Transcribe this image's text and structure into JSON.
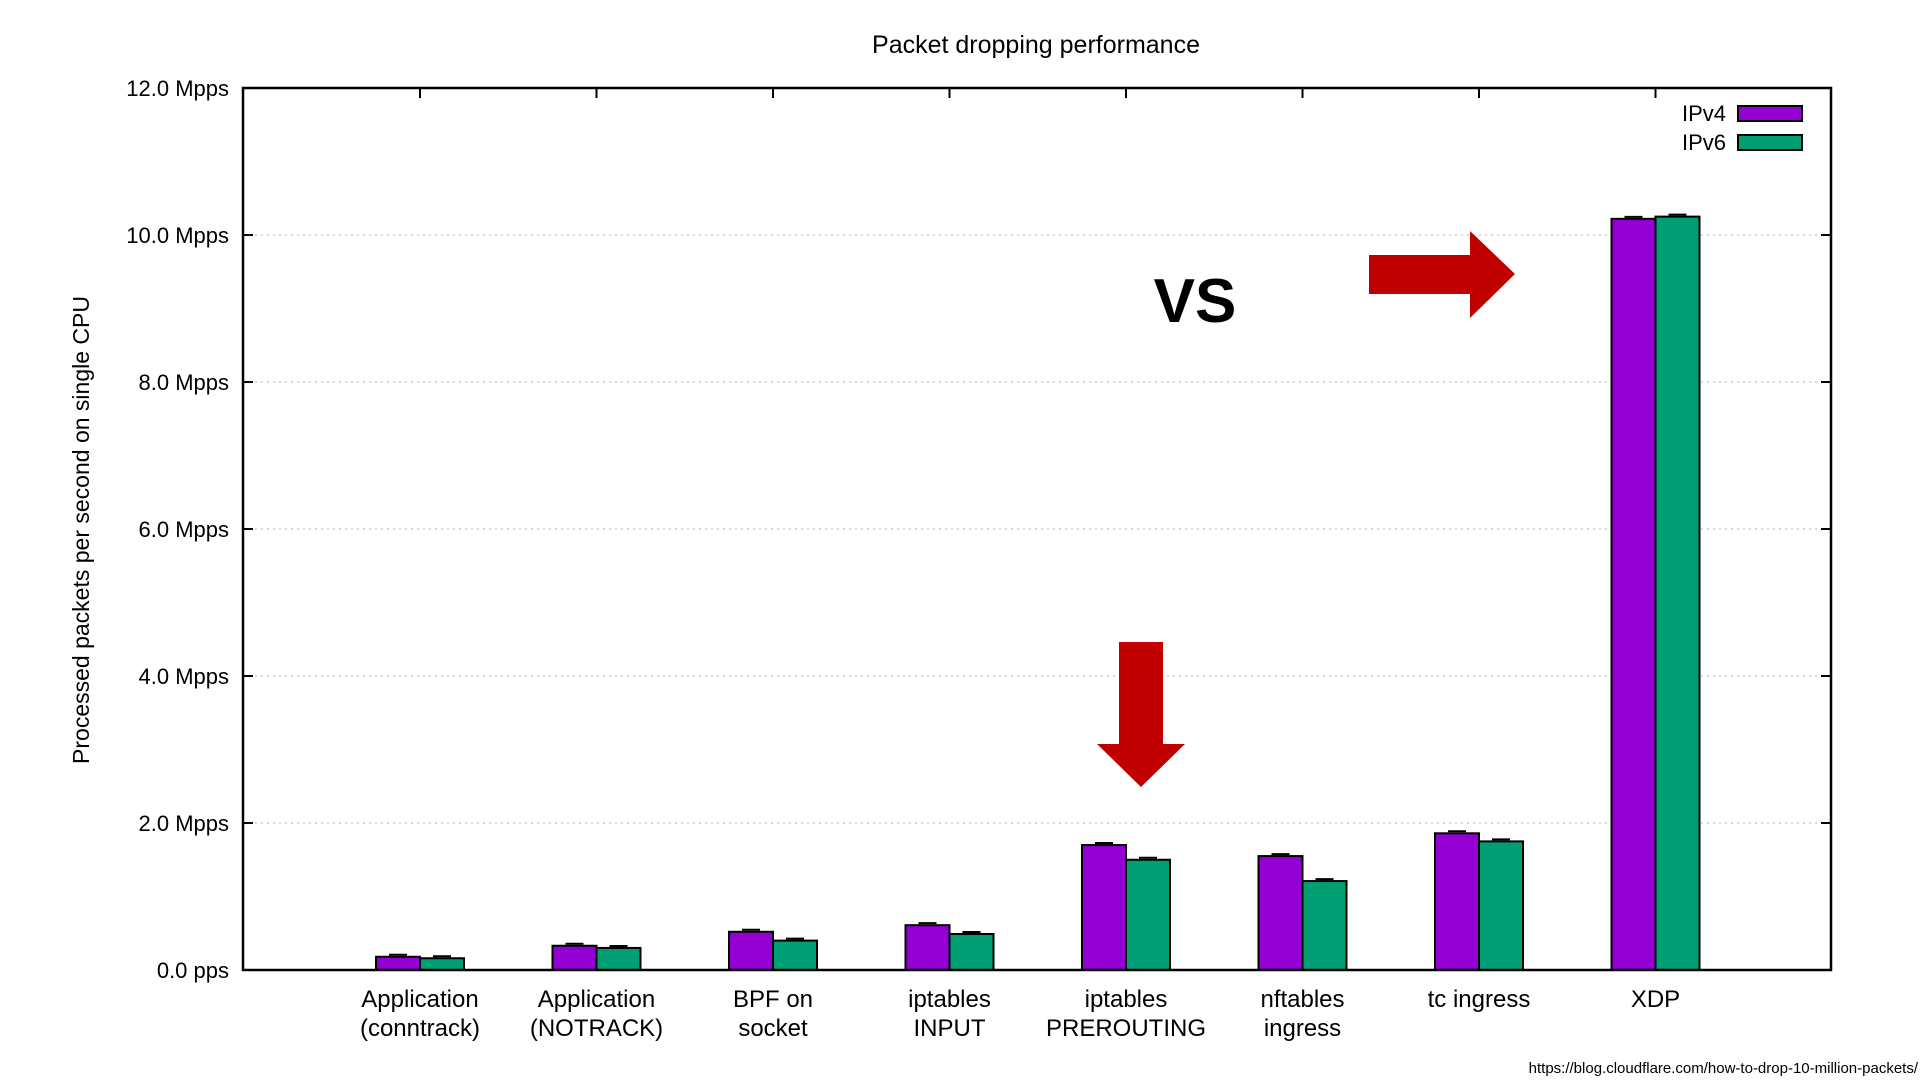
{
  "chart_data": {
    "type": "bar",
    "title": "Packet dropping performance",
    "xlabel": "",
    "ylabel": "Processed packets per second on single CPU",
    "ylim": [
      0,
      12
    ],
    "yticks": [
      0,
      2,
      4,
      6,
      8,
      10,
      12
    ],
    "ytick_labels": [
      "0.0  pps",
      "2.0 Mpps",
      "4.0 Mpps",
      "6.0 Mpps",
      "8.0 Mpps",
      "10.0 Mpps",
      "12.0 Mpps"
    ],
    "grid": true,
    "legend_position": "top-right",
    "categories": [
      [
        "Application",
        "(conntrack)"
      ],
      [
        "Application",
        "(NOTRACK)"
      ],
      [
        "BPF on",
        "socket"
      ],
      [
        "iptables",
        "INPUT"
      ],
      [
        "iptables",
        "PREROUTING"
      ],
      [
        "nftables",
        "ingress"
      ],
      [
        "tc ingress"
      ],
      [
        "XDP"
      ]
    ],
    "series": [
      {
        "name": "IPv4",
        "color": "#9400d3",
        "values": [
          0.18,
          0.33,
          0.52,
          0.61,
          1.7,
          1.55,
          1.86,
          10.22
        ]
      },
      {
        "name": "IPv6",
        "color": "#009e73",
        "values": [
          0.16,
          0.3,
          0.4,
          0.49,
          1.5,
          1.21,
          1.75,
          10.25
        ]
      }
    ],
    "annotations": {
      "vs_text": "VS",
      "source": "https://blog.cloudflare.com/how-to-drop-10-million-packets/",
      "arrow_color": "#c00000"
    }
  }
}
